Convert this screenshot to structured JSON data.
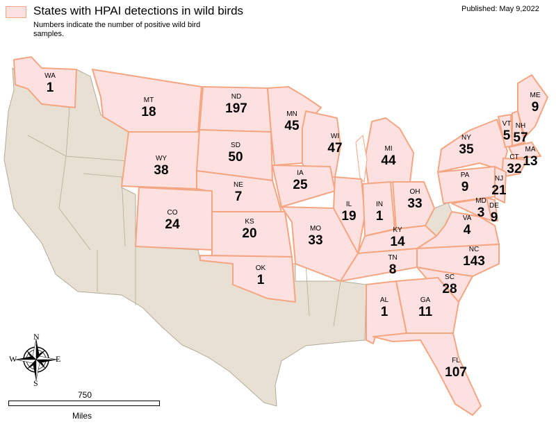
{
  "legend": {
    "title": "States with HPAI detections in wild birds",
    "note": "Numbers indicate the number of positive wild bird samples.",
    "fill_color": "#fde0e0",
    "stroke_color": "#f4a582"
  },
  "published": "Published: May 9,2022",
  "colors": {
    "non_detected_land": "#e8e1d3",
    "border": "#b3aa98"
  },
  "states": [
    {
      "abbr": "WA",
      "count": "1"
    },
    {
      "abbr": "MT",
      "count": "18"
    },
    {
      "abbr": "ND",
      "count": "197"
    },
    {
      "abbr": "MN",
      "count": "45"
    },
    {
      "abbr": "WI",
      "count": "47"
    },
    {
      "abbr": "MI",
      "count": "44"
    },
    {
      "abbr": "NY",
      "count": "35"
    },
    {
      "abbr": "VT",
      "count": "5"
    },
    {
      "abbr": "NH",
      "count": "57"
    },
    {
      "abbr": "ME",
      "count": "9"
    },
    {
      "abbr": "MA",
      "count": "13"
    },
    {
      "abbr": "CT",
      "count": "32"
    },
    {
      "abbr": "WY",
      "count": "38"
    },
    {
      "abbr": "SD",
      "count": "50"
    },
    {
      "abbr": "NE",
      "count": "7"
    },
    {
      "abbr": "IA",
      "count": "25"
    },
    {
      "abbr": "IL",
      "count": "19"
    },
    {
      "abbr": "IN",
      "count": "1"
    },
    {
      "abbr": "OH",
      "count": "33"
    },
    {
      "abbr": "PA",
      "count": "9"
    },
    {
      "abbr": "NJ",
      "count": "21"
    },
    {
      "abbr": "MD",
      "count": "3"
    },
    {
      "abbr": "DE",
      "count": "9"
    },
    {
      "abbr": "CO",
      "count": "24"
    },
    {
      "abbr": "KS",
      "count": "20"
    },
    {
      "abbr": "MO",
      "count": "33"
    },
    {
      "abbr": "KY",
      "count": "14"
    },
    {
      "abbr": "VA",
      "count": "4"
    },
    {
      "abbr": "NC",
      "count": "143"
    },
    {
      "abbr": "TN",
      "count": "8"
    },
    {
      "abbr": "OK",
      "count": "1"
    },
    {
      "abbr": "SC",
      "count": "28"
    },
    {
      "abbr": "AL",
      "count": "1"
    },
    {
      "abbr": "GA",
      "count": "11"
    },
    {
      "abbr": "FL",
      "count": "107"
    }
  ],
  "compass": {
    "n": "N",
    "s": "S",
    "e": "E",
    "w": "W"
  },
  "scale": {
    "value": "750",
    "unit": "Miles"
  }
}
